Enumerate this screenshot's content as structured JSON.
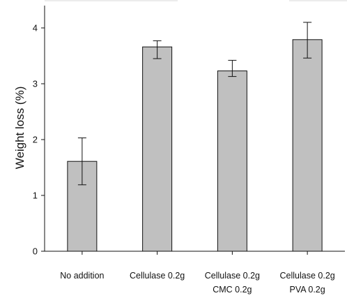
{
  "chart_data": {
    "type": "bar",
    "title": "",
    "xlabel": "",
    "ylabel": "Weight loss (%)",
    "ylim": [
      0,
      4.4
    ],
    "yticks": [
      "0",
      "1",
      "2",
      "3",
      "4"
    ],
    "grid": false,
    "legend": "none",
    "categories": [
      [
        "No addition"
      ],
      [
        "Cellulase 0.2g"
      ],
      [
        "Cellulase 0.2g",
        "CMC 0.2g"
      ],
      [
        "Cellulase 0.2g",
        "PVA 0.2g"
      ]
    ],
    "values": [
      1.61,
      3.66,
      3.23,
      3.79
    ],
    "errors": [
      0.42,
      0.11,
      0.1,
      0.31
    ],
    "errors_upper": [
      0.42,
      0.11,
      0.19,
      0.31
    ],
    "errors_lower": [
      0.42,
      0.21,
      0.1,
      0.33
    ],
    "colors": {
      "bar_fill": "#c0c0c0",
      "bar_stroke": "#111111",
      "axis": "#111111"
    }
  }
}
